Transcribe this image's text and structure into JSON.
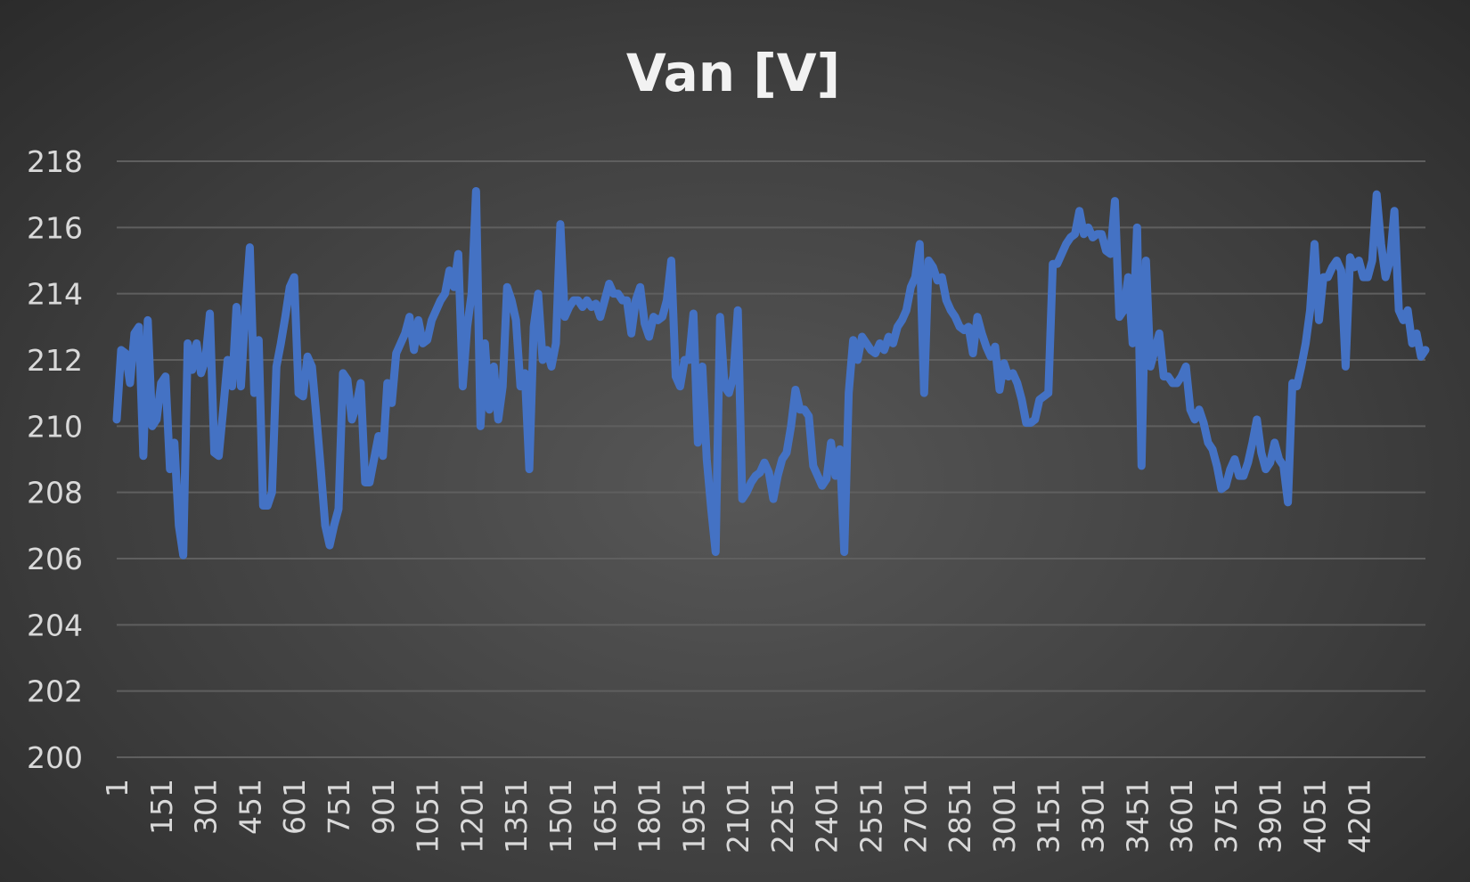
{
  "chart_data": {
    "type": "line",
    "title": "Van [V]",
    "x": [
      1,
      16,
      31,
      46,
      61,
      76,
      91,
      106,
      121,
      136,
      151,
      166,
      181,
      196,
      211,
      226,
      241,
      256,
      271,
      286,
      301,
      316,
      331,
      346,
      361,
      376,
      391,
      406,
      421,
      436,
      451,
      466,
      481,
      496,
      511,
      526,
      541,
      556,
      571,
      586,
      601,
      616,
      631,
      646,
      661,
      676,
      691,
      706,
      721,
      736,
      751,
      766,
      781,
      796,
      811,
      826,
      841,
      856,
      871,
      886,
      901,
      916,
      931,
      946,
      961,
      976,
      991,
      1006,
      1021,
      1036,
      1051,
      1066,
      1081,
      1096,
      1111,
      1126,
      1141,
      1156,
      1171,
      1186,
      1201,
      1216,
      1231,
      1246,
      1261,
      1276,
      1291,
      1306,
      1321,
      1336,
      1351,
      1366,
      1381,
      1396,
      1411,
      1426,
      1441,
      1456,
      1471,
      1486,
      1501,
      1516,
      1531,
      1546,
      1561,
      1576,
      1591,
      1606,
      1621,
      1636,
      1651,
      1666,
      1681,
      1696,
      1711,
      1726,
      1741,
      1756,
      1771,
      1786,
      1801,
      1816,
      1831,
      1846,
      1861,
      1876,
      1891,
      1906,
      1921,
      1936,
      1951,
      1966,
      1981,
      1996,
      2011,
      2026,
      2041,
      2056,
      2071,
      2086,
      2101,
      2116,
      2131,
      2146,
      2161,
      2176,
      2191,
      2206,
      2221,
      2236,
      2251,
      2266,
      2281,
      2296,
      2311,
      2326,
      2341,
      2356,
      2371,
      2386,
      2401,
      2416,
      2431,
      2446,
      2461,
      2476,
      2491,
      2506,
      2521,
      2536,
      2551,
      2566,
      2581,
      2596,
      2611,
      2626,
      2641,
      2656,
      2671,
      2686,
      2701,
      2716,
      2731,
      2746,
      2761,
      2776,
      2791,
      2806,
      2821,
      2836,
      2851,
      2866,
      2881,
      2896,
      2911,
      2926,
      2941,
      2956,
      2971,
      2986,
      3001,
      3016,
      3031,
      3046,
      3061,
      3076,
      3091,
      3106,
      3121,
      3136,
      3151,
      3166,
      3181,
      3196,
      3211,
      3226,
      3241,
      3256,
      3271,
      3286,
      3301,
      3316,
      3331,
      3346,
      3361,
      3376,
      3391,
      3406,
      3421,
      3436,
      3451,
      3466,
      3481,
      3496,
      3511,
      3526,
      3541,
      3556,
      3571,
      3586,
      3601,
      3616,
      3631,
      3646,
      3661,
      3676,
      3691,
      3706,
      3721,
      3736,
      3751,
      3766,
      3781,
      3796,
      3811,
      3826,
      3841,
      3856,
      3871,
      3886,
      3901,
      3916,
      3931,
      3946,
      3961,
      3976,
      3991,
      4006,
      4021,
      4036,
      4051,
      4066,
      4081,
      4096,
      4111,
      4126,
      4141,
      4156,
      4171,
      4186,
      4201,
      4216,
      4231,
      4246,
      4261,
      4276,
      4291,
      4306,
      4321,
      4336,
      4351,
      4366,
      4381,
      4396,
      4411,
      4426
    ],
    "series": [
      {
        "name": "Van [V]",
        "color": "#4472c4",
        "values": [
          210.2,
          212.3,
          212.2,
          211.3,
          212.8,
          213.0,
          209.1,
          213.2,
          210.0,
          210.2,
          211.3,
          211.5,
          208.7,
          209.5,
          207.0,
          206.1,
          212.5,
          211.7,
          212.5,
          211.6,
          212.0,
          213.4,
          209.2,
          209.1,
          210.5,
          212.0,
          211.2,
          213.6,
          211.2,
          213.5,
          215.4,
          211.0,
          212.6,
          207.6,
          207.6,
          208.0,
          211.8,
          212.5,
          213.3,
          214.2,
          214.5,
          211.0,
          210.9,
          212.1,
          211.8,
          210.3,
          208.7,
          207.0,
          206.4,
          207.0,
          207.5,
          211.6,
          211.4,
          210.2,
          210.6,
          211.3,
          208.3,
          208.3,
          209.0,
          209.7,
          209.1,
          211.3,
          210.7,
          212.2,
          212.5,
          212.8,
          213.3,
          212.3,
          213.2,
          212.5,
          212.6,
          213.2,
          213.5,
          213.8,
          214.0,
          214.7,
          214.2,
          215.2,
          211.2,
          213.0,
          214.0,
          217.1,
          210.0,
          212.5,
          210.5,
          211.8,
          210.2,
          211.2,
          214.2,
          213.8,
          213.2,
          211.2,
          211.6,
          208.7,
          213.0,
          214.0,
          212.0,
          212.3,
          211.8,
          212.5,
          216.1,
          213.3,
          213.6,
          213.8,
          213.8,
          213.6,
          213.8,
          213.6,
          213.7,
          213.3,
          213.8,
          214.3,
          214.0,
          214.0,
          213.8,
          213.8,
          212.8,
          213.8,
          214.2,
          213.1,
          212.7,
          213.3,
          213.2,
          213.3,
          213.8,
          215.0,
          211.5,
          211.2,
          212.0,
          212.0,
          213.4,
          209.5,
          211.8,
          209.0,
          207.5,
          206.2,
          213.3,
          211.2,
          211.0,
          211.5,
          213.5,
          207.8,
          208.0,
          208.3,
          208.5,
          208.6,
          208.9,
          208.6,
          207.8,
          208.5,
          209.0,
          209.2,
          210.0,
          211.1,
          210.5,
          210.5,
          210.3,
          208.8,
          208.5,
          208.2,
          208.4,
          209.5,
          208.5,
          209.3,
          206.2,
          211.0,
          212.6,
          212.0,
          212.7,
          212.5,
          212.3,
          212.2,
          212.5,
          212.3,
          212.7,
          212.5,
          213.0,
          213.2,
          213.5,
          214.2,
          214.5,
          215.5,
          211.0,
          215.0,
          214.8,
          214.4,
          214.5,
          213.8,
          213.5,
          213.3,
          213.0,
          212.9,
          213.0,
          212.2,
          213.3,
          212.8,
          212.4,
          212.1,
          212.4,
          211.1,
          211.9,
          211.5,
          211.6,
          211.3,
          210.8,
          210.1,
          210.1,
          210.2,
          210.8,
          210.9,
          211.0,
          214.9,
          214.9,
          215.2,
          215.5,
          215.7,
          215.8,
          216.5,
          215.8,
          216.0,
          215.7,
          215.8,
          215.8,
          215.3,
          215.2,
          216.8,
          213.3,
          213.5,
          214.5,
          212.5,
          216.0,
          208.8,
          215.0,
          211.8,
          212.3,
          212.8,
          211.5,
          211.5,
          211.3,
          211.3,
          211.5,
          211.8,
          210.5,
          210.2,
          210.5,
          210.1,
          209.5,
          209.3,
          208.8,
          208.1,
          208.2,
          208.7,
          209.0,
          208.5,
          208.5,
          208.9,
          209.5,
          210.2,
          209.2,
          208.7,
          208.9,
          209.5,
          209.0,
          208.8,
          207.7,
          211.3,
          211.2,
          211.8,
          212.5,
          213.5,
          215.5,
          213.2,
          214.5,
          214.5,
          214.8,
          215.0,
          214.7,
          211.8,
          215.1,
          214.8,
          215.0,
          214.5,
          214.5,
          215.0,
          217.0,
          215.5,
          214.5,
          215.0,
          216.5,
          213.5,
          213.2,
          213.5,
          212.5,
          212.8,
          212.1,
          212.3
        ]
      }
    ],
    "xlim": [
      1,
      4426
    ],
    "xticks": [
      1,
      151,
      301,
      451,
      601,
      751,
      901,
      1051,
      1201,
      1351,
      1501,
      1651,
      1801,
      1951,
      2101,
      2251,
      2401,
      2551,
      2701,
      2851,
      3001,
      3151,
      3301,
      3451,
      3601,
      3751,
      3901,
      4051,
      4201
    ],
    "ylim": [
      200,
      218
    ],
    "yticks": [
      200,
      202,
      204,
      206,
      208,
      210,
      212,
      214,
      216,
      218
    ],
    "grid": true
  }
}
